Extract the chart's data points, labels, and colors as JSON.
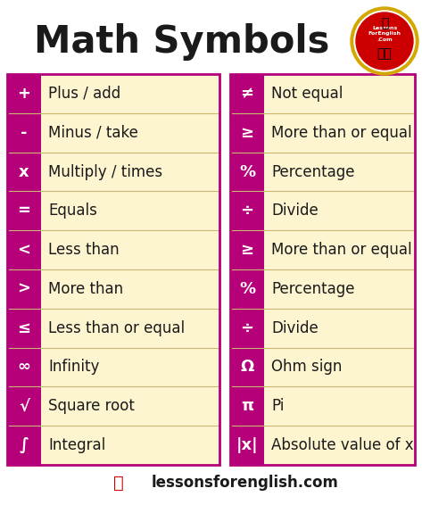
{
  "title": "Math Symbols",
  "bg_color": "#ffffff",
  "header_color": "#1a1a1a",
  "purple_color": "#b5007a",
  "cream_color": "#fdf5d0",
  "row_line_color": "#c8b870",
  "left_symbols": [
    "+",
    "-",
    "x",
    "=",
    "<",
    ">",
    "≤",
    "∞",
    "√",
    "∫"
  ],
  "left_names": [
    "Plus / add",
    "Minus / take",
    "Multiply / times",
    "Equals",
    "Less than",
    "More than",
    "Less than or equal",
    "Infinity",
    "Square root",
    "Integral"
  ],
  "right_symbols": [
    "≠",
    "≥",
    "%",
    "÷",
    "≥",
    "%",
    "÷",
    "Ω",
    "π",
    "|x|"
  ],
  "right_names": [
    "Not equal",
    "More than or equal",
    "Percentage",
    "Divide",
    "More than or equal",
    "Percentage",
    "Divide",
    "Ohm sign",
    "Pi",
    "Absolute value of x"
  ],
  "footer_text": "lessonsforenglish.com",
  "title_fontsize": 30,
  "symbol_fontsize": 13,
  "name_fontsize": 12,
  "footer_fontsize": 12,
  "purple_sym_fontsize": 13
}
